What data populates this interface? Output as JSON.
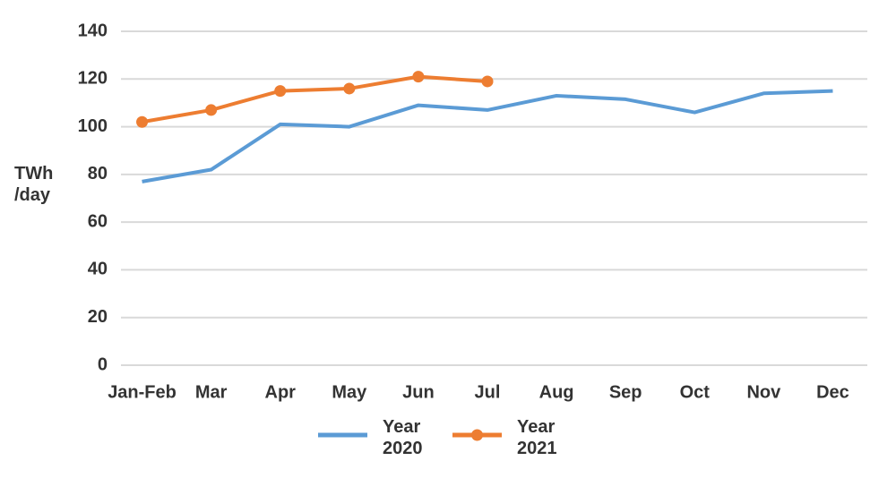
{
  "chart_data": {
    "type": "line",
    "y_label": "TWh /day",
    "categories": [
      "Jan-Feb",
      "Mar",
      "Apr",
      "May",
      "Jun",
      "Jul",
      "Aug",
      "Sep",
      "Oct",
      "Nov",
      "Dec"
    ],
    "series": [
      {
        "name": "Year 2020",
        "color": "#5b9bd5",
        "markers": false,
        "values": [
          77,
          82,
          101,
          100,
          109,
          107,
          113,
          111.5,
          106,
          114,
          115
        ]
      },
      {
        "name": "Year 2021",
        "color": "#ed7d31",
        "markers": true,
        "values": [
          102,
          107,
          115,
          116,
          121,
          119,
          null,
          null,
          null,
          null,
          null
        ]
      }
    ],
    "ylim": [
      0,
      140
    ],
    "yticks": [
      0,
      20,
      40,
      60,
      80,
      100,
      120,
      140
    ],
    "grid": true,
    "legend": "bottom"
  }
}
